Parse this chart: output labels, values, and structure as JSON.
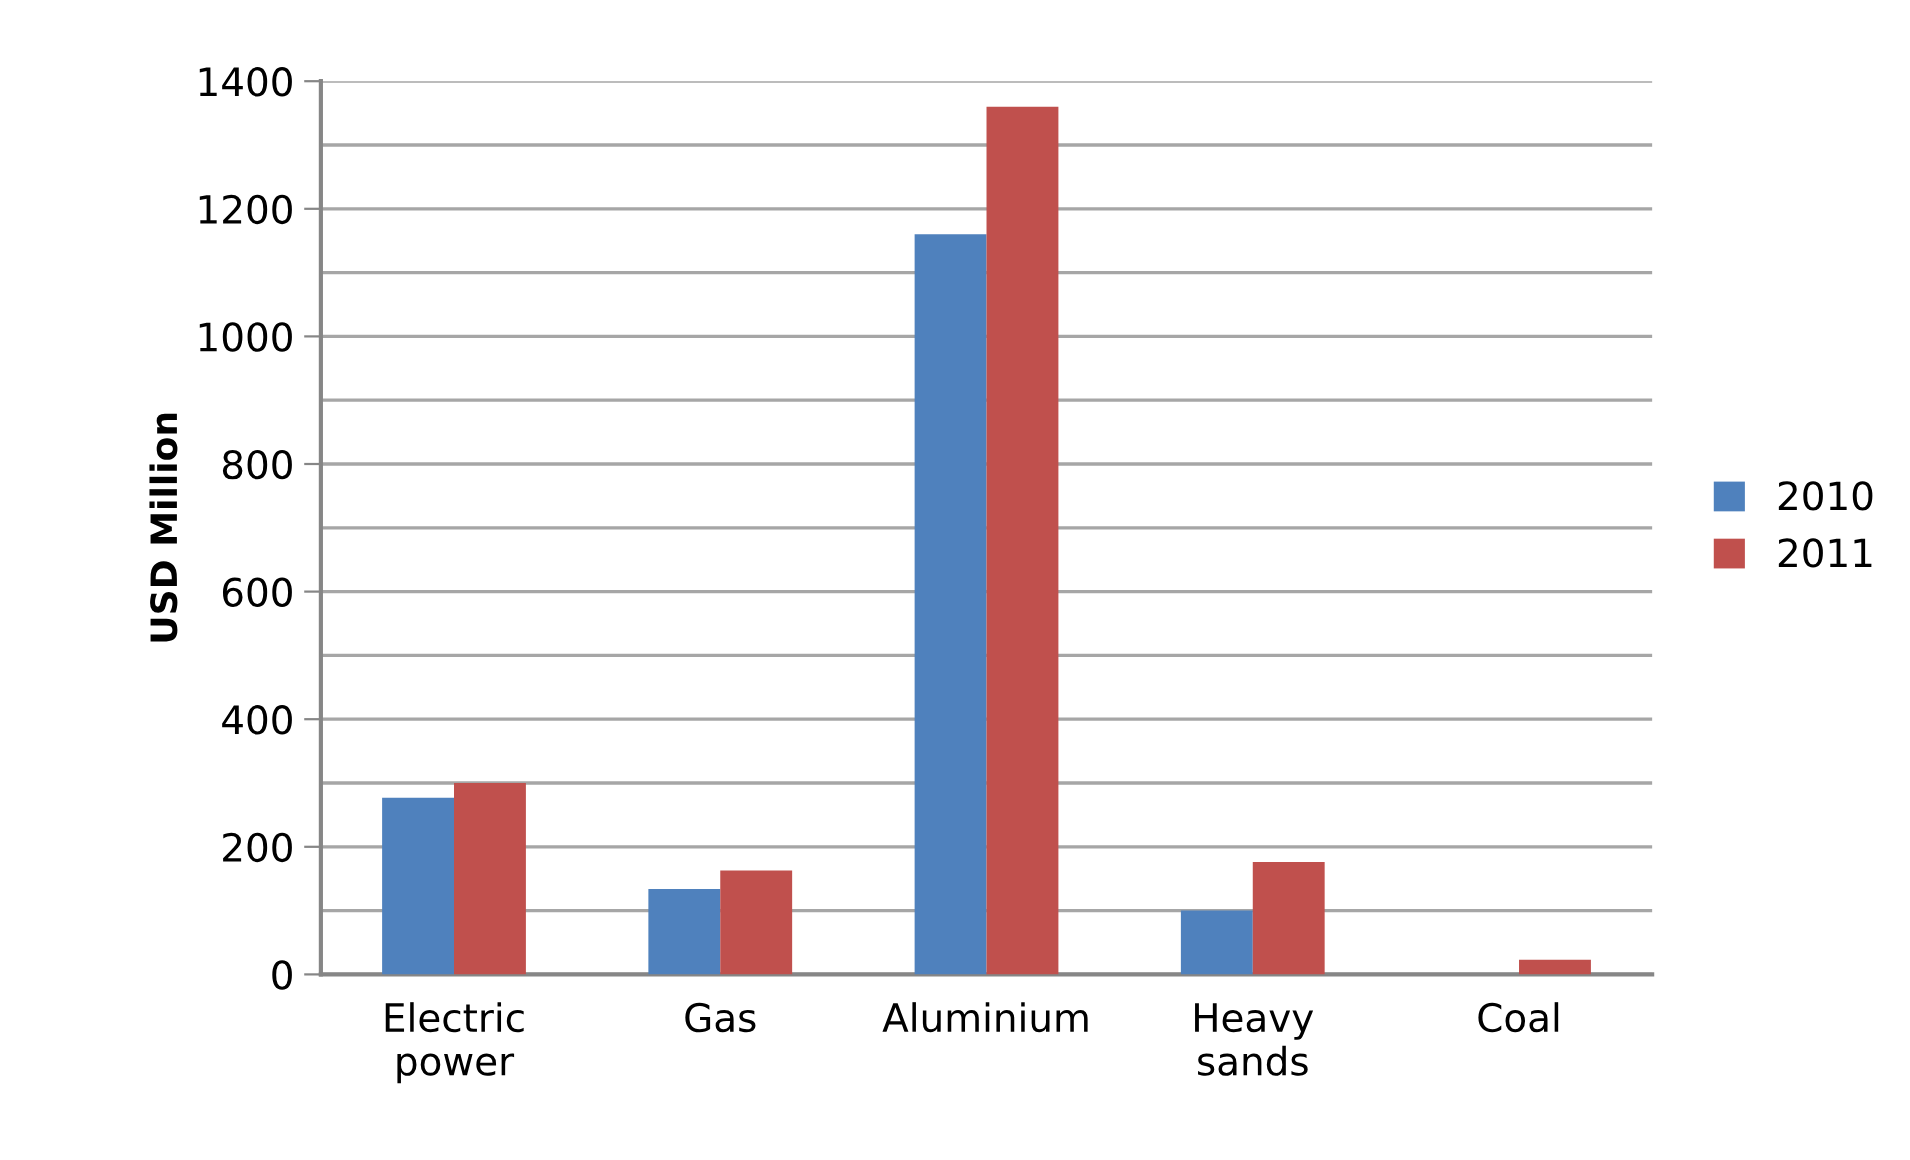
{
  "chart_data": {
    "type": "bar",
    "ylabel": "USD Million",
    "categories": [
      "Electric\npower",
      "Gas",
      "Aluminium",
      "Heavy\nsands",
      "Coal"
    ],
    "series": [
      {
        "name": "2010",
        "color": "#4f81bd",
        "values": [
          277,
          134,
          1160,
          100,
          0
        ]
      },
      {
        "name": "2011",
        "color": "#c0504d",
        "values": [
          300,
          163,
          1360,
          176,
          23
        ]
      }
    ],
    "ylim": [
      0,
      1400
    ],
    "yticks": [
      0,
      {
        "value": 100,
        "label": null
      },
      200,
      {
        "value": 300,
        "label": null
      },
      400,
      {
        "value": 500,
        "label": null
      },
      600,
      {
        "value": 700,
        "label": null
      },
      800,
      {
        "value": 900,
        "label": null
      },
      1000,
      {
        "value": 1100,
        "label": null
      },
      1200,
      {
        "value": 1300,
        "label": null
      },
      1400
    ],
    "grid": "y",
    "legend": "right"
  }
}
